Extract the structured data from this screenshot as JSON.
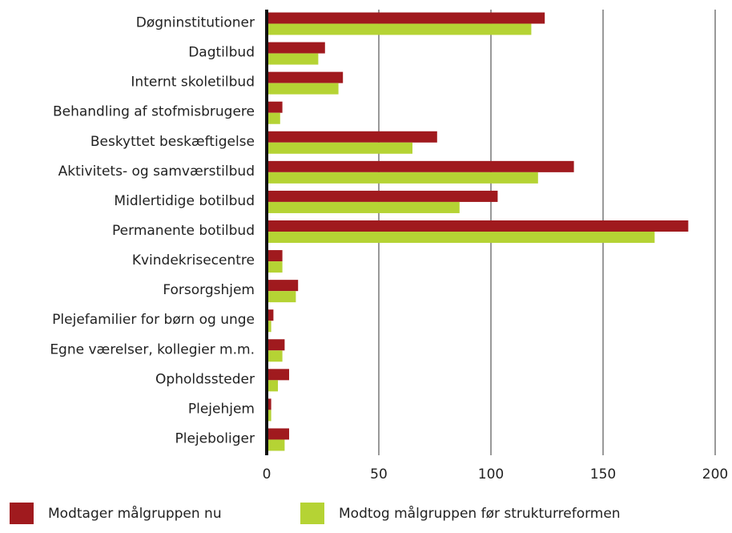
{
  "chart_data": {
    "type": "bar",
    "orientation": "horizontal",
    "categories": [
      "Døgninstitutioner",
      "Dagtilbud",
      "Internt skoletilbud",
      "Behandling af stofmisbrugere",
      "Beskyttet beskæftigelse",
      "Aktivitets- og samværstilbud",
      "Midlertidige botilbud",
      "Permanente botilbud",
      "Kvindekrisecentre",
      "Forsorgshjem",
      "Plejefamilier for børn og unge",
      "Egne værelser, kollegier m.m.",
      "Opholdssteder",
      "Plejehjem",
      "Plejeboliger"
    ],
    "series": [
      {
        "name": "Modtager målgruppen nu",
        "color": "#a01a1e",
        "values": [
          124,
          26,
          34,
          7,
          76,
          137,
          103,
          188,
          7,
          14,
          3,
          8,
          10,
          2,
          10
        ]
      },
      {
        "name": "Modtog målgruppen før strukturreformen",
        "color": "#b5d334",
        "values": [
          118,
          23,
          32,
          6,
          65,
          121,
          86,
          173,
          7,
          13,
          2,
          7,
          5,
          2,
          8
        ]
      }
    ],
    "xlim": [
      0,
      200
    ],
    "xticks": [
      0,
      50,
      100,
      150,
      200
    ],
    "grid": true,
    "legend": "bottom"
  }
}
